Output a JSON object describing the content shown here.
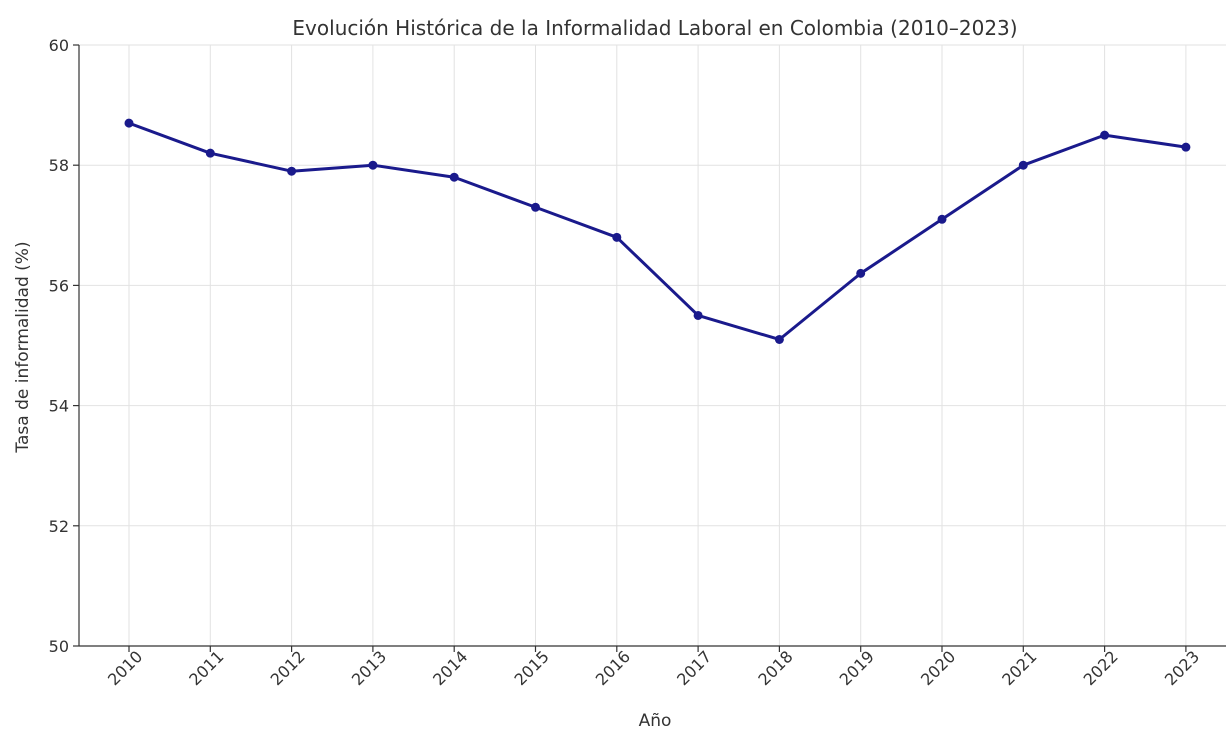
{
  "chart_data": {
    "type": "line",
    "title": "Evolución Histórica de la Informalidad Laboral en Colombia (2010–2023)",
    "xlabel": "Año",
    "ylabel": "Tasa de informalidad (%)",
    "x": [
      "2010",
      "2011",
      "2012",
      "2013",
      "2014",
      "2015",
      "2016",
      "2017",
      "2018",
      "2019",
      "2020",
      "2021",
      "2022",
      "2023"
    ],
    "y_ticks": [
      "50",
      "52",
      "54",
      "56",
      "58",
      "60"
    ],
    "ylim": [
      50,
      60
    ],
    "grid": true,
    "series": [
      {
        "values": [
          58.7,
          58.2,
          57.9,
          58.0,
          57.8,
          57.3,
          56.8,
          55.5,
          55.1,
          56.2,
          57.1,
          58.0,
          58.5,
          58.3
        ],
        "color": "#1a1a8c",
        "marker": "circle"
      }
    ]
  }
}
